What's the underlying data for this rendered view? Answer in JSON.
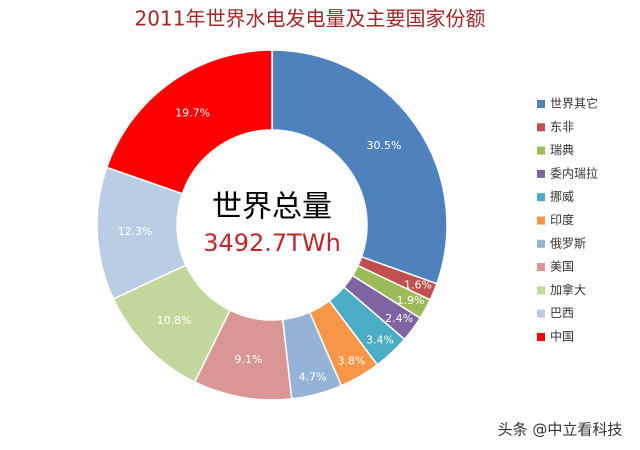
{
  "chart_data": {
    "type": "donut",
    "title": "2011年世界水电发电量及主要国家份额",
    "center_title": "世界总量",
    "center_value": "3492.7TWh",
    "categories": [
      "世界其它",
      "东非",
      "瑞典",
      "委内瑞拉",
      "挪威",
      "印度",
      "俄罗斯",
      "美国",
      "加拿大",
      "巴西",
      "中国"
    ],
    "values": [
      30.5,
      1.6,
      1.9,
      2.4,
      3.4,
      3.8,
      4.7,
      9.1,
      10.8,
      12.3,
      19.7
    ],
    "value_labels": [
      "30.5%",
      "1.6%",
      "1.9%",
      "2.4%",
      "3.4%",
      "3.8%",
      "4.7%",
      "9.1%",
      "10.8%",
      "12.3%",
      "19.7%"
    ],
    "colors": [
      "#4f81bd",
      "#c0504d",
      "#9bbb59",
      "#8064a2",
      "#4bacc6",
      "#f79646",
      "#95b3d7",
      "#d99694",
      "#c3d69b",
      "#b9cde5",
      "#ff0000"
    ],
    "legend": "right"
  },
  "watermark": "头条 @中立看科技"
}
